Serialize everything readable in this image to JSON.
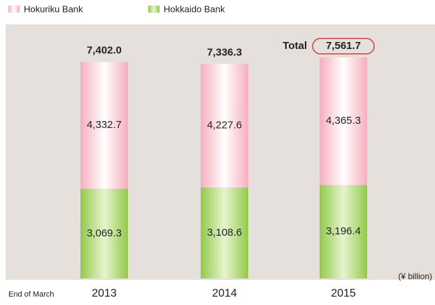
{
  "chart_data": {
    "type": "stacked_bar",
    "categories": [
      "2013",
      "2014",
      "2015"
    ],
    "series": [
      {
        "name": "Hokuriku Bank",
        "color": "#f6aebd",
        "values": [
          4332.7,
          4227.6,
          4365.3
        ],
        "value_labels": [
          "4,332.7",
          "4,227.6",
          "4,365.3"
        ]
      },
      {
        "name": "Hokkaido Bank",
        "color": "#92c94a",
        "values": [
          3069.3,
          3108.6,
          3196.4
        ],
        "value_labels": [
          "3,069.3",
          "3,108.6",
          "3,196.4"
        ]
      }
    ],
    "totals": [
      7402.0,
      7336.3,
      7561.7
    ],
    "total_labels": [
      "7,402.0",
      "7,336.3",
      "7,561.7"
    ],
    "total_caption": "Total",
    "unit_label": "(¥ billion)",
    "x_caption": "End of March"
  }
}
